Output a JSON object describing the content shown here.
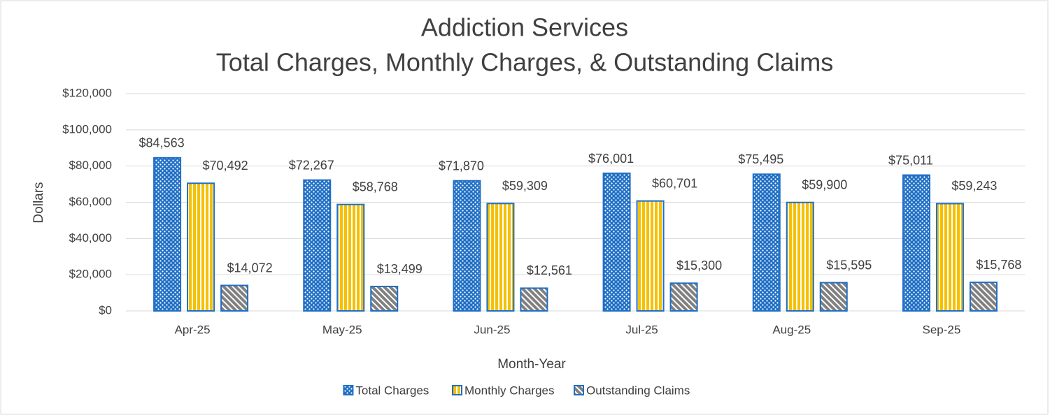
{
  "chart_data": {
    "type": "bar",
    "title": "Addiction Services",
    "subtitle": "Total Charges, Monthly Charges, & Outstanding Claims",
    "x_label": "Month-Year",
    "y_label": "Dollars",
    "categories": [
      "Apr-25",
      "May-25",
      "Jun-25",
      "Jul-25",
      "Aug-25",
      "Sep-25"
    ],
    "series": [
      {
        "name": "Total Charges",
        "color": "#1f6fc5",
        "values": [
          84563,
          72267,
          71870,
          76001,
          75495,
          75011
        ],
        "value_labels": [
          "$84,563",
          "$72,267",
          "$71,870",
          "$76,001",
          "$75,495",
          "$75,011"
        ]
      },
      {
        "name": "Monthly Charges",
        "color": "#f5c000",
        "values": [
          70492,
          58768,
          59309,
          60701,
          59900,
          59243
        ],
        "value_labels": [
          "$70,492",
          "$58,768",
          "$59,309",
          "$60,701",
          "$59,900",
          "$59,243"
        ]
      },
      {
        "name": "Outstanding Claims",
        "color": "#808080",
        "values": [
          14072,
          13499,
          12561,
          15300,
          15595,
          15768
        ],
        "value_labels": [
          "$14,072",
          "$13,499",
          "$12,561",
          "$15,300",
          "$15,595",
          "$15,768"
        ]
      }
    ],
    "ylim": [
      0,
      120000
    ],
    "yticks": [
      {
        "value": 0,
        "label": "$0"
      },
      {
        "value": 20000,
        "label": "$20,000"
      },
      {
        "value": 40000,
        "label": "$40,000"
      },
      {
        "value": 60000,
        "label": "$60,000"
      },
      {
        "value": 80000,
        "label": "$80,000"
      },
      {
        "value": 100000,
        "label": "$100,000"
      },
      {
        "value": 120000,
        "label": "$120,000"
      }
    ],
    "grid": true,
    "legend": "bottom"
  }
}
